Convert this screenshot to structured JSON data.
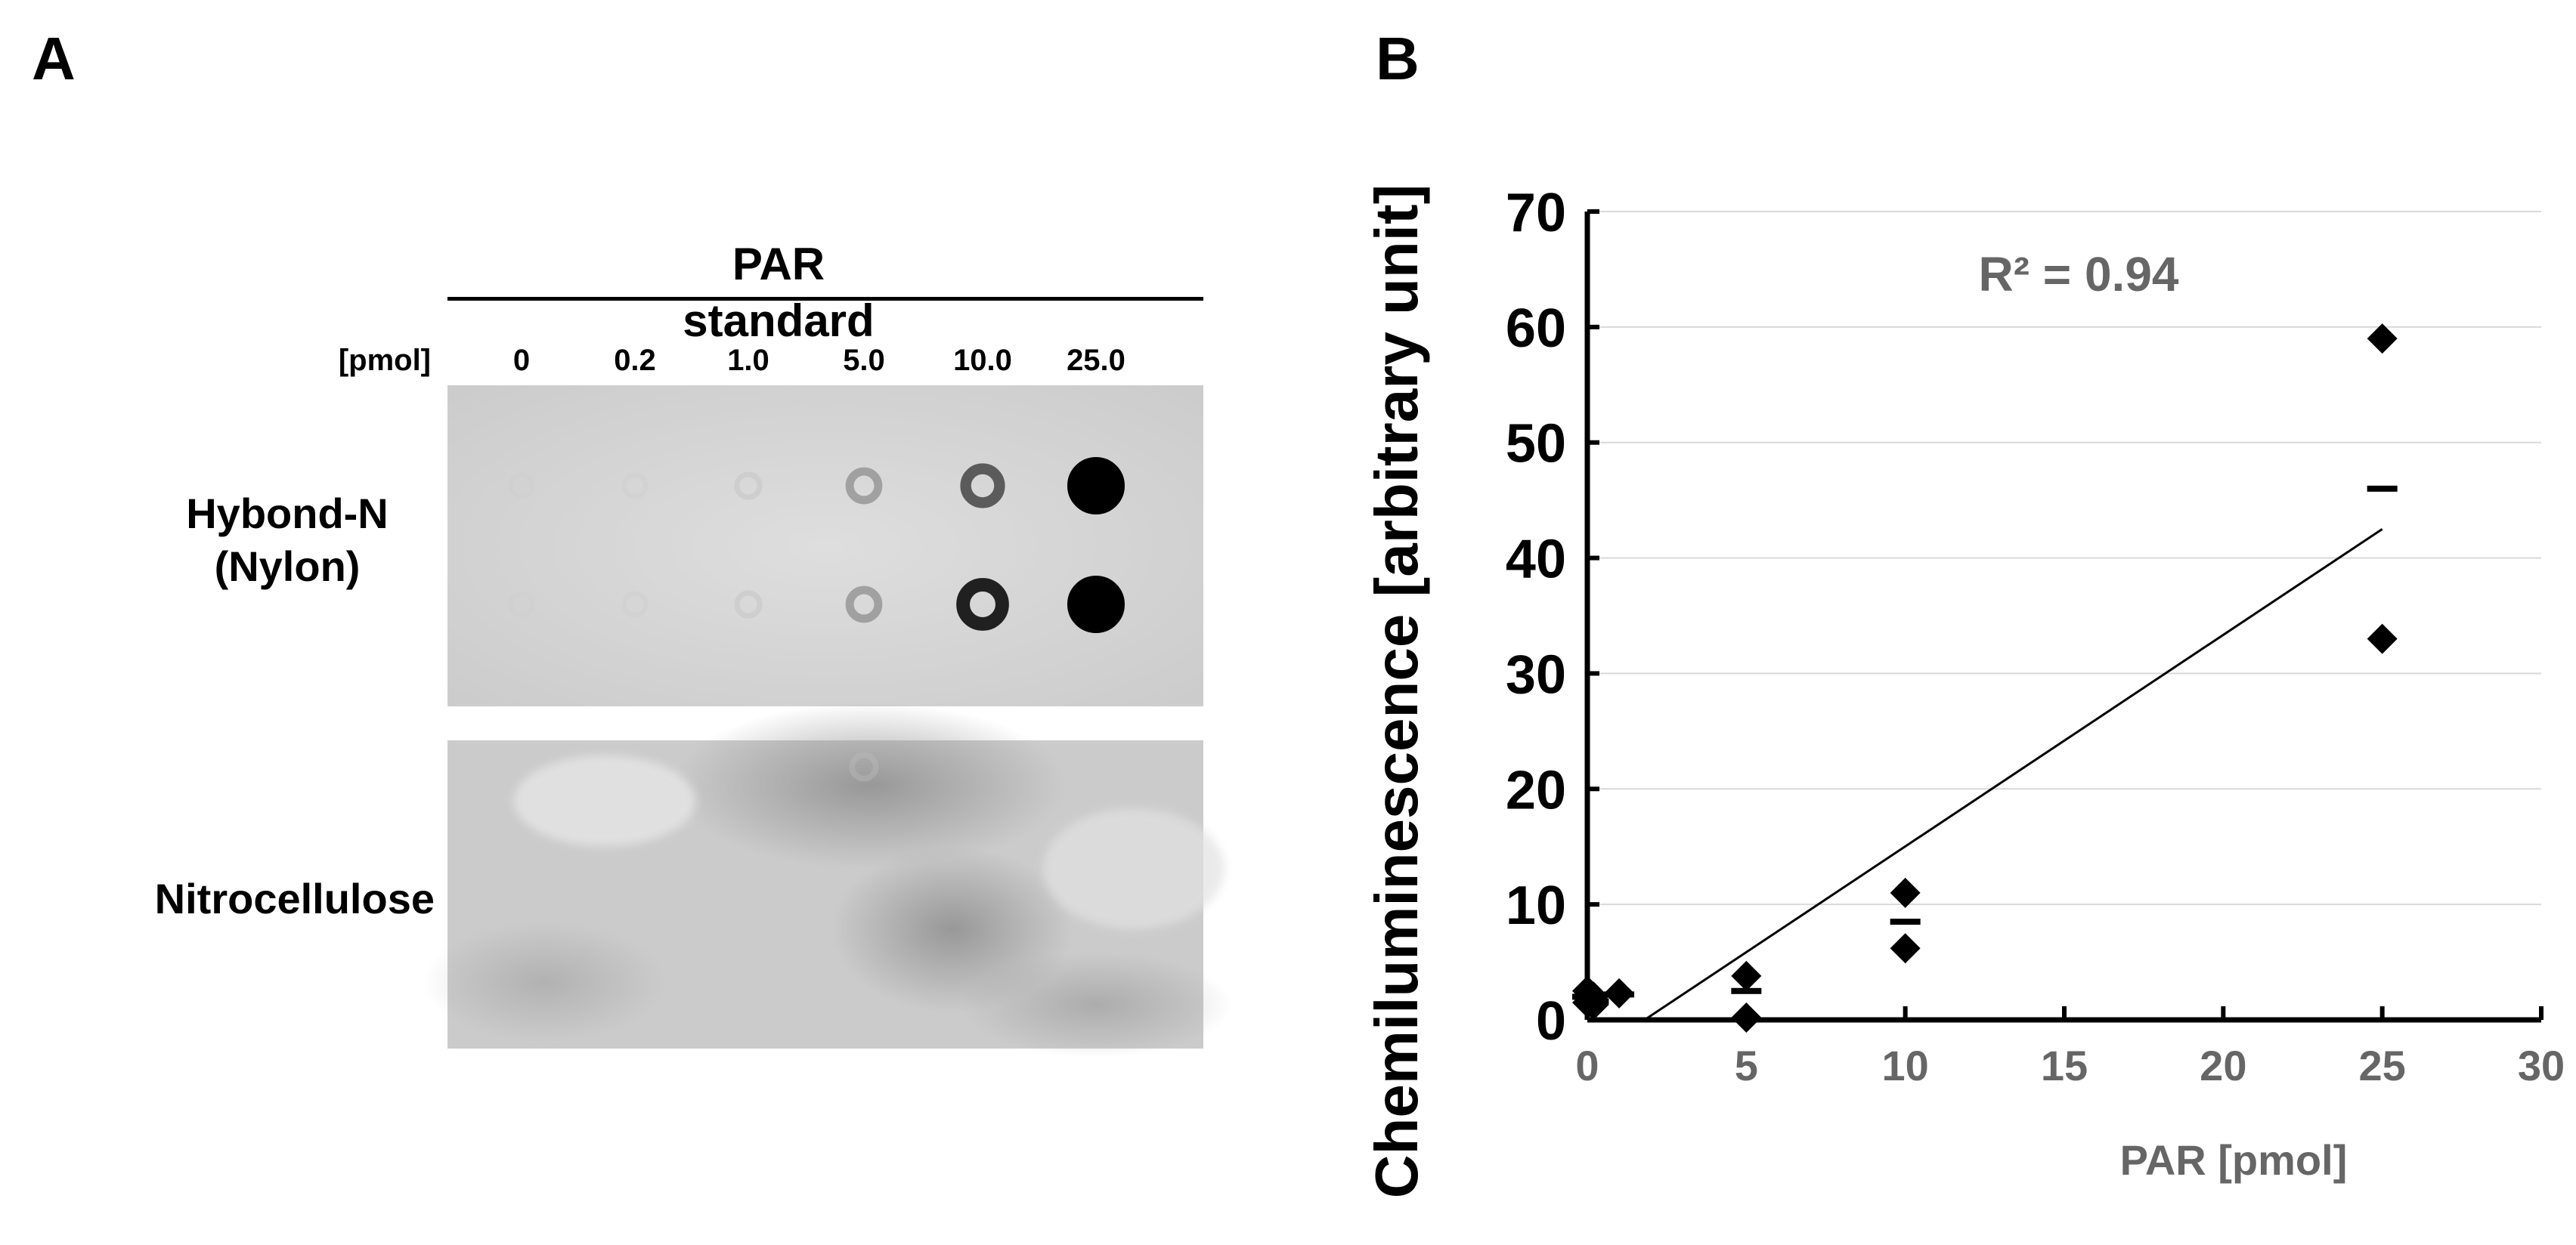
{
  "panel_a": {
    "label": "A",
    "header": "PAR standard",
    "unit_label": "[pmol]",
    "columns": [
      "0",
      "0.2",
      "1.0",
      "5.0",
      "10.0",
      "25.0"
    ],
    "membranes": [
      {
        "name": "Hybond-N\n(Nylon)",
        "rows": [
          [
            0.02,
            0.03,
            0.08,
            0.35,
            0.6,
            1.0
          ],
          [
            0.02,
            0.03,
            0.08,
            0.35,
            0.85,
            1.0
          ]
        ]
      },
      {
        "name": "Nitrocellulose",
        "rows": [
          [
            0,
            0,
            0,
            0.12,
            0,
            0
          ]
        ]
      }
    ]
  },
  "panel_b": {
    "label": "B"
  },
  "chart_data": {
    "type": "scatter",
    "title": "",
    "xlabel": "PAR [pmol]",
    "ylabel": "Chemiluminescence [arbitrary unit]",
    "xlim": [
      0,
      30
    ],
    "ylim": [
      0,
      70
    ],
    "xticks": [
      0,
      5,
      10,
      15,
      20,
      25,
      30
    ],
    "yticks": [
      0,
      10,
      20,
      30,
      40,
      50,
      60,
      70
    ],
    "grid": true,
    "annotation": "R² = 0.94",
    "series": [
      {
        "marker": "diamond",
        "x": [
          0,
          0,
          0.2,
          0.2,
          1,
          5,
          5,
          10,
          10,
          25,
          25
        ],
        "y": [
          2.5,
          1.5,
          2.0,
          1.3,
          2.3,
          3.8,
          0.2,
          11.0,
          6.2,
          59.0,
          33.0
        ]
      },
      {
        "marker": "dash",
        "x": [
          0,
          0.2,
          1,
          5,
          10,
          25
        ],
        "y": [
          2.0,
          1.6,
          2.2,
          2.5,
          8.5,
          46.0
        ]
      }
    ],
    "fit_line": {
      "x": [
        1.8,
        25
      ],
      "y": [
        0,
        42.5
      ]
    }
  }
}
